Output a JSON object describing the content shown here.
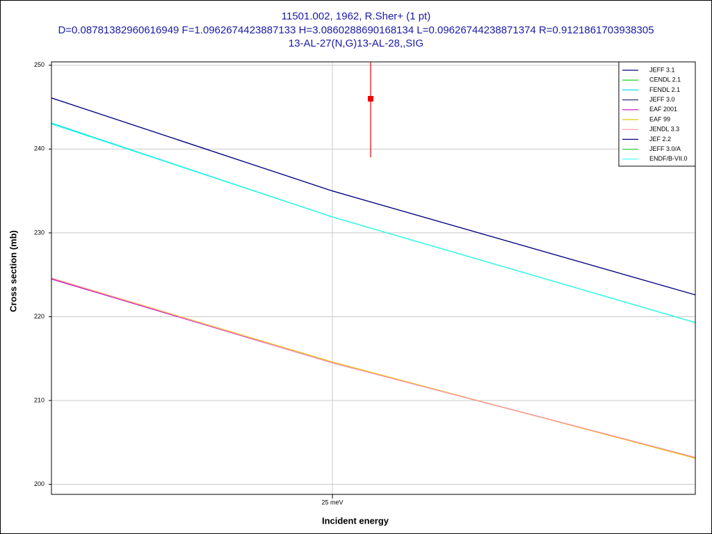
{
  "chart_data": {
    "type": "line",
    "title": "11501.002, 1962, R.Sher+ (1 pt)",
    "subtitle": "D=0.08781382960616949 F=1.0962674423887133 H=3.0860288690168134 L=0.09626744238871374 R=0.9121861703938305",
    "subtitle2": "13-AL-27(N,G)13-AL-28,,SIG",
    "x_label": "Incident energy",
    "y_label": "Cross section (mb)",
    "x": [
      22.9,
      25,
      28.0
    ],
    "xlim": [
      22.9,
      28.0
    ],
    "xticks": [
      {
        "value": 25,
        "label": "25 meV"
      }
    ],
    "xlog": true,
    "ylim": [
      198.8,
      250.4
    ],
    "yticks": [
      200,
      210,
      220,
      230,
      240,
      250
    ],
    "grid": true,
    "legend": "top-right",
    "series": [
      {
        "name": "JEFF 3.1",
        "color": "#000080",
        "values": [
          246.1,
          235.0,
          222.6
        ]
      },
      {
        "name": "CENDL 2.1",
        "color": "#00cc00",
        "values": [
          243.0,
          231.9,
          219.3
        ]
      },
      {
        "name": "FENDL 2.1",
        "color": "#00e0e0",
        "values": [
          243.1,
          231.9,
          219.3
        ]
      },
      {
        "name": "JEFF 3.0",
        "color": "#303070",
        "values": [
          224.5,
          214.5,
          203.2
        ]
      },
      {
        "name": "EAF 2001",
        "color": "#cc00cc",
        "values": [
          224.5,
          214.5,
          203.2
        ]
      },
      {
        "name": "EAF 99",
        "color": "#e8c800",
        "values": [
          224.6,
          214.6,
          203.1
        ]
      },
      {
        "name": "JENDL 3.3",
        "color": "#ff9999",
        "values": [
          224.6,
          214.5,
          203.2
        ]
      },
      {
        "name": "JEF 2.2",
        "color": "#000080",
        "values": [
          246.1,
          235.0,
          222.6
        ]
      },
      {
        "name": "JEFF 3.0/A",
        "color": "#33cc33",
        "values": [
          243.0,
          231.9,
          219.3
        ]
      },
      {
        "name": "ENDF/B-VII.0",
        "color": "#33ffff",
        "values": [
          243.0,
          231.9,
          219.3
        ]
      }
    ],
    "points": {
      "x": [
        25.3
      ],
      "values": [
        246
      ],
      "errors": [
        7
      ],
      "color": "#ee0000"
    }
  }
}
